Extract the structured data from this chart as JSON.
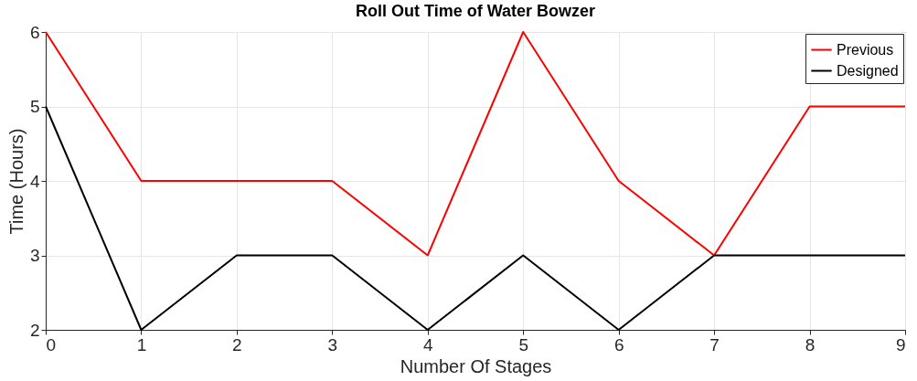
{
  "chart_data": {
    "type": "line",
    "title": "Roll Out Time of Water Bowzer",
    "xlabel": "Number Of Stages",
    "ylabel": "Time (Hours)",
    "x": [
      0,
      1,
      2,
      3,
      4,
      5,
      6,
      7,
      8,
      9
    ],
    "series": [
      {
        "name": "Previous",
        "color": "#ff0000",
        "values": [
          6,
          4,
          4,
          4,
          3,
          6,
          4,
          3,
          5,
          5
        ]
      },
      {
        "name": "Designed",
        "color": "#000000",
        "values": [
          5,
          2,
          3,
          3,
          2,
          3,
          2,
          3,
          3,
          3
        ]
      }
    ],
    "xlim": [
      0,
      9
    ],
    "xticks": [
      0,
      1,
      2,
      3,
      4,
      5,
      6,
      7,
      8,
      9
    ],
    "ylim": [
      2,
      6
    ],
    "yticks": [
      2,
      3,
      4,
      5,
      6
    ],
    "grid": true,
    "legend": "top right",
    "marker": "none",
    "line_style": "solid"
  }
}
